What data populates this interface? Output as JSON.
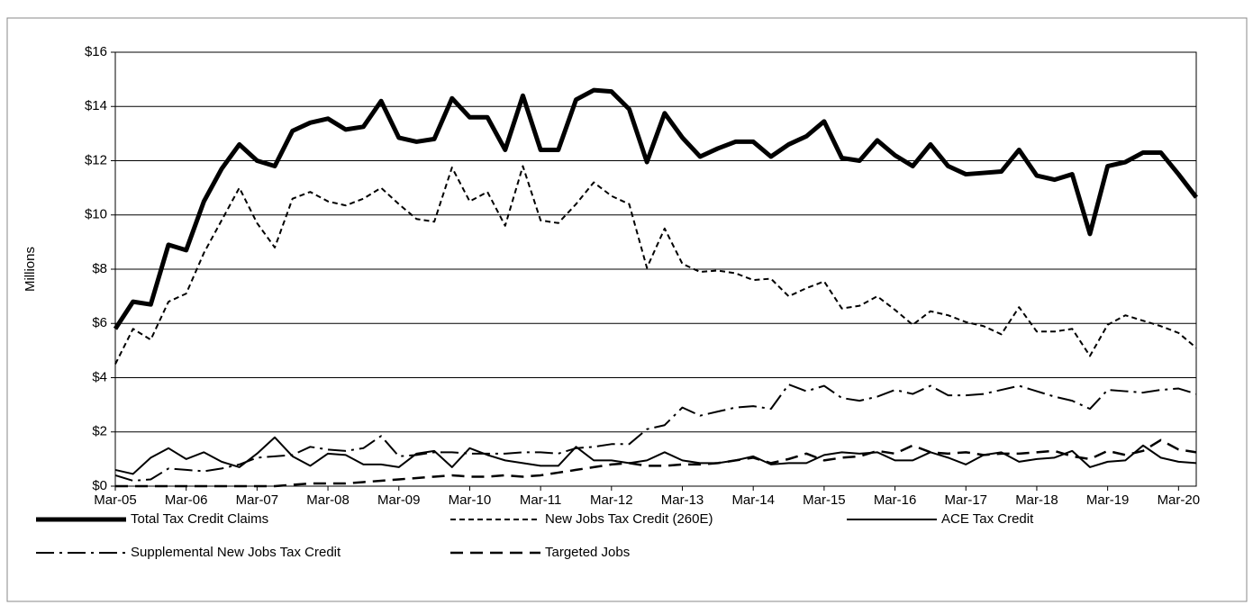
{
  "chart_data": {
    "type": "line",
    "y_label": "Millions",
    "categories": [
      "Mar-05",
      null,
      null,
      null,
      "Mar-06",
      null,
      null,
      null,
      "Mar-07",
      null,
      null,
      null,
      "Mar-08",
      null,
      null,
      null,
      "Mar-09",
      null,
      null,
      null,
      "Mar-10",
      null,
      null,
      null,
      "Mar-11",
      null,
      null,
      null,
      "Mar-12",
      null,
      null,
      null,
      "Mar-13",
      null,
      null,
      null,
      "Mar-14",
      null,
      null,
      null,
      "Mar-15",
      null,
      null,
      null,
      "Mar-16",
      null,
      null,
      null,
      "Mar-17",
      null,
      null,
      null,
      "Mar-18",
      null,
      null,
      null,
      "Mar-19",
      null,
      null,
      null,
      "Mar-20",
      null
    ],
    "ylim": [
      0,
      16
    ],
    "yticks": [
      {
        "value": 0,
        "label": "$0"
      },
      {
        "value": 2,
        "label": "$2"
      },
      {
        "value": 4,
        "label": "$4"
      },
      {
        "value": 6,
        "label": "$6"
      },
      {
        "value": 8,
        "label": "$8"
      },
      {
        "value": 10,
        "label": "$10"
      },
      {
        "value": 12,
        "label": "$12"
      },
      {
        "value": 14,
        "label": "$14"
      },
      {
        "value": 16,
        "label": "$16"
      }
    ],
    "grid": true,
    "legend": "bottom",
    "series": [
      {
        "name": "Total Tax Credit Claims",
        "color": "#000000",
        "width": 5,
        "dash": "none",
        "values": [
          5.8,
          6.8,
          6.7,
          8.9,
          8.7,
          10.5,
          11.7,
          12.6,
          12.0,
          11.8,
          13.1,
          13.4,
          13.55,
          13.15,
          13.25,
          14.2,
          12.85,
          12.7,
          12.8,
          14.3,
          13.6,
          13.6,
          12.4,
          14.4,
          12.4,
          12.4,
          14.25,
          14.6,
          14.55,
          13.9,
          11.95,
          13.75,
          12.85,
          12.15,
          12.45,
          12.7,
          12.7,
          12.15,
          12.6,
          12.9,
          13.45,
          12.1,
          12.0,
          12.75,
          12.2,
          11.8,
          12.6,
          11.8,
          11.5,
          11.55,
          11.6,
          12.4,
          11.45,
          11.3,
          11.5,
          9.3,
          11.8,
          11.95,
          12.3,
          12.3,
          11.5,
          10.65
        ]
      },
      {
        "name": "New Jobs Tax Credit (260E)",
        "color": "#000000",
        "width": 2,
        "dash": "6 4",
        "values": [
          4.5,
          5.8,
          5.4,
          6.8,
          7.1,
          8.6,
          9.8,
          11.0,
          9.7,
          8.8,
          10.6,
          10.85,
          10.5,
          10.35,
          10.6,
          11.0,
          10.4,
          9.85,
          9.75,
          11.75,
          10.5,
          10.85,
          9.6,
          11.8,
          9.8,
          9.7,
          10.4,
          11.2,
          10.7,
          10.4,
          8.05,
          9.5,
          8.2,
          7.9,
          7.95,
          7.85,
          7.6,
          7.65,
          7.0,
          7.3,
          7.55,
          6.55,
          6.65,
          7.0,
          6.5,
          5.95,
          6.45,
          6.3,
          6.05,
          5.9,
          5.6,
          6.6,
          5.7,
          5.7,
          5.8,
          4.8,
          5.95,
          6.3,
          6.1,
          5.9,
          5.65,
          5.1
        ]
      },
      {
        "name": "ACE Tax Credit",
        "color": "#000000",
        "width": 2,
        "dash": "none",
        "values": [
          0.6,
          0.45,
          1.05,
          1.4,
          1.0,
          1.25,
          0.9,
          0.7,
          1.2,
          1.8,
          1.1,
          0.75,
          1.2,
          1.15,
          0.8,
          0.8,
          0.7,
          1.2,
          1.3,
          0.7,
          1.4,
          1.15,
          0.95,
          0.85,
          0.75,
          0.75,
          1.45,
          0.95,
          0.95,
          0.85,
          0.95,
          1.25,
          0.95,
          0.85,
          0.85,
          0.95,
          1.1,
          0.8,
          0.85,
          0.85,
          1.15,
          1.25,
          1.2,
          1.25,
          0.95,
          0.95,
          1.25,
          1.05,
          0.8,
          1.15,
          1.25,
          0.9,
          1.0,
          1.05,
          1.3,
          0.7,
          0.9,
          0.95,
          1.5,
          1.05,
          0.9,
          0.85
        ]
      },
      {
        "name": "Supplemental New Jobs Tax Credit",
        "color": "#000000",
        "width": 2,
        "dash": "20 6 3 6",
        "values": [
          0.4,
          0.2,
          0.25,
          0.65,
          0.6,
          0.55,
          0.65,
          0.8,
          1.05,
          1.1,
          1.15,
          1.45,
          1.35,
          1.3,
          1.4,
          1.85,
          1.1,
          1.15,
          1.25,
          1.25,
          1.2,
          1.2,
          1.2,
          1.25,
          1.25,
          1.2,
          1.4,
          1.45,
          1.55,
          1.55,
          2.1,
          2.25,
          2.9,
          2.6,
          2.75,
          2.9,
          2.95,
          2.85,
          3.75,
          3.5,
          3.7,
          3.25,
          3.15,
          3.3,
          3.55,
          3.4,
          3.7,
          3.35,
          3.35,
          3.4,
          3.55,
          3.7,
          3.5,
          3.3,
          3.15,
          2.85,
          3.55,
          3.5,
          3.45,
          3.55,
          3.6,
          3.4
        ]
      },
      {
        "name": "Targeted Jobs",
        "color": "#000000",
        "width": 2.5,
        "dash": "14 8",
        "values": [
          0,
          0,
          0,
          0,
          0,
          0,
          0,
          0,
          0,
          0,
          0.05,
          0.1,
          0.1,
          0.1,
          0.15,
          0.2,
          0.25,
          0.3,
          0.35,
          0.4,
          0.35,
          0.35,
          0.4,
          0.35,
          0.4,
          0.5,
          0.6,
          0.7,
          0.8,
          0.85,
          0.75,
          0.75,
          0.8,
          0.8,
          0.85,
          0.95,
          1.05,
          0.85,
          1.0,
          1.2,
          0.95,
          1.05,
          1.1,
          1.3,
          1.2,
          1.5,
          1.25,
          1.2,
          1.25,
          1.15,
          1.2,
          1.2,
          1.25,
          1.3,
          1.1,
          1.0,
          1.3,
          1.15,
          1.3,
          1.7,
          1.35,
          1.25
        ]
      }
    ]
  }
}
